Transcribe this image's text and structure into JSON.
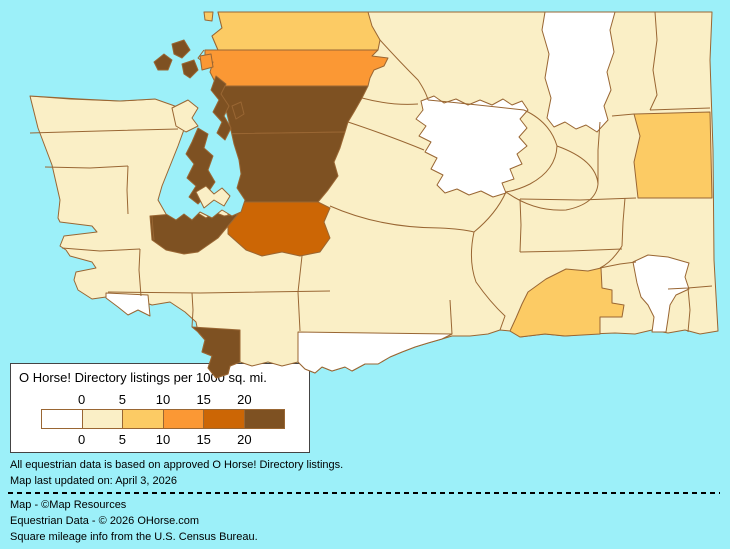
{
  "palette": {
    "water": "#9CF0F9",
    "border": "#996633",
    "text": "#000000",
    "legend_box_border": "#444444",
    "legend_box_bg": "#FFFFFF"
  },
  "legend": {
    "title": "O Horse! Directory listings per 1000 sq. mi.",
    "tick_labels": [
      "0",
      "5",
      "10",
      "15",
      "20"
    ],
    "bucket_order": [
      "0",
      "0-5",
      "5-10",
      "10-15",
      "15-20",
      "20+"
    ],
    "bucket_colors": {
      "0": "#FFFFFF",
      "0-5": "#FAEFC6",
      "5-10": "#FCCB64",
      "10-15": "#FB9834",
      "15-20": "#CC6605",
      "20+": "#7E5122"
    }
  },
  "map": {
    "region": "Washington State counties choropleth",
    "counties": [
      {
        "name": "whatcom",
        "bucket": "5-10"
      },
      {
        "name": "skagit",
        "bucket": "10-15"
      },
      {
        "name": "snohomish",
        "bucket": "20+"
      },
      {
        "name": "king",
        "bucket": "20+"
      },
      {
        "name": "pierce",
        "bucket": "15-20"
      },
      {
        "name": "kitsap",
        "bucket": "20+"
      },
      {
        "name": "island",
        "bucket": "20+"
      },
      {
        "name": "san-juan",
        "bucket": "20+"
      },
      {
        "name": "thurston",
        "bucket": "20+"
      },
      {
        "name": "clark",
        "bucket": "20+"
      },
      {
        "name": "spokane",
        "bucket": "5-10"
      },
      {
        "name": "walla-walla",
        "bucket": "5-10"
      },
      {
        "name": "ferry",
        "bucket": "0"
      },
      {
        "name": "chelan",
        "bucket": "0"
      },
      {
        "name": "klickitat",
        "bucket": "0"
      },
      {
        "name": "wahkiakum",
        "bucket": "0"
      },
      {
        "name": "garfield",
        "bucket": "0"
      },
      {
        "name": "clallam",
        "bucket": "0-5"
      },
      {
        "name": "jefferson",
        "bucket": "0-5"
      },
      {
        "name": "grays-harbor",
        "bucket": "0-5"
      },
      {
        "name": "mason",
        "bucket": "0-5"
      },
      {
        "name": "pacific",
        "bucket": "0-5"
      },
      {
        "name": "lewis",
        "bucket": "0-5"
      },
      {
        "name": "cowlitz",
        "bucket": "0-5"
      },
      {
        "name": "skamania",
        "bucket": "0-5"
      },
      {
        "name": "okanogan",
        "bucket": "0-5"
      },
      {
        "name": "douglas",
        "bucket": "0-5"
      },
      {
        "name": "kittitas",
        "bucket": "0-5"
      },
      {
        "name": "yakima",
        "bucket": "0-5"
      },
      {
        "name": "benton",
        "bucket": "0-5"
      },
      {
        "name": "grant",
        "bucket": "0-5"
      },
      {
        "name": "lincoln",
        "bucket": "0-5"
      },
      {
        "name": "stevens",
        "bucket": "0-5"
      },
      {
        "name": "pend-oreille",
        "bucket": "0-5"
      },
      {
        "name": "adams",
        "bucket": "0-5"
      },
      {
        "name": "whitman",
        "bucket": "0-5"
      },
      {
        "name": "franklin",
        "bucket": "0-5"
      },
      {
        "name": "columbia",
        "bucket": "0-5"
      },
      {
        "name": "asotin",
        "bucket": "0-5"
      }
    ]
  },
  "footnotes": {
    "line1": "All equestrian data is based on approved O Horse! Directory listings.",
    "line2": "Map last updated on: April 3, 2026",
    "credit1": "Map - ©Map Resources",
    "credit2": "Equestrian Data - © 2026 OHorse.com",
    "credit3": "Square mileage info from the U.S. Census Bureau."
  }
}
